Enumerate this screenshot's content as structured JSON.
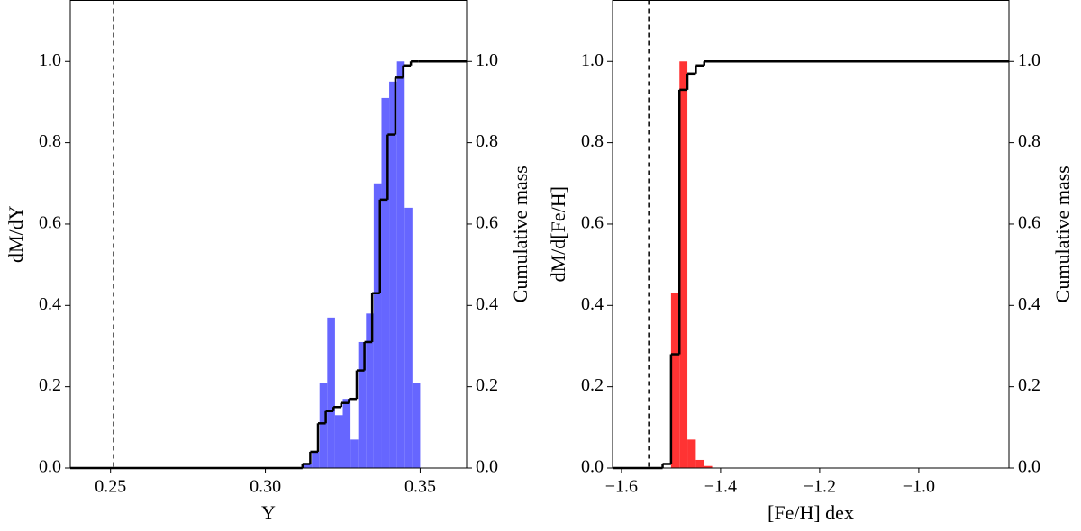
{
  "chart_data": [
    {
      "type": "histogram",
      "xlabel": "Y",
      "ylabel": "dM/dY",
      "y2label": "Cumulative mass",
      "bins": [
        0.3125,
        0.315,
        0.3175,
        0.32,
        0.3225,
        0.325,
        0.3275,
        0.33,
        0.3325,
        0.335,
        0.3375,
        0.34,
        0.3425,
        0.345,
        0.3475,
        0.35
      ],
      "values": [
        0.01,
        0.04,
        0.21,
        0.37,
        0.13,
        0.17,
        0.07,
        0.31,
        0.38,
        0.7,
        0.91,
        0.95,
        1.0,
        0.64,
        0.21
      ],
      "color": "#6666ff",
      "vline": 0.251,
      "cumulative": {
        "axis": "y2",
        "color": "#000000",
        "x": [
          0.237,
          0.312,
          0.3145,
          0.317,
          0.3195,
          0.322,
          0.3245,
          0.327,
          0.3295,
          0.332,
          0.3345,
          0.337,
          0.3395,
          0.342,
          0.3445,
          0.347,
          0.3495
        ],
        "values": [
          0,
          0.01,
          0.04,
          0.11,
          0.14,
          0.15,
          0.16,
          0.17,
          0.24,
          0.31,
          0.43,
          0.66,
          0.82,
          0.96,
          0.99,
          1.0,
          1.0
        ]
      },
      "xlim": [
        0.237,
        0.365
      ],
      "ylim": [
        0,
        1.15
      ],
      "y2lim": [
        0,
        1.15
      ],
      "xticks": [
        0.25,
        {
          "value": 0.3,
          "label": "0.30"
        },
        0.35
      ],
      "yticks": [
        {
          "value": 0,
          "label": "0.0"
        },
        0.2,
        0.4,
        0.6,
        0.8,
        {
          "value": 1,
          "label": "1.0"
        }
      ],
      "y2ticks": [
        {
          "value": 0,
          "label": "0.0"
        },
        0.2,
        0.4,
        0.6,
        0.8,
        {
          "value": 1,
          "label": "1.0"
        }
      ]
    },
    {
      "type": "histogram",
      "xlabel": "[Fe/H] dex",
      "ylabel": "dM/d[Fe/H]",
      "y2label": "Cumulative mass",
      "bins": [
        -1.5,
        -1.483,
        -1.467,
        -1.45,
        -1.433,
        -1.417
      ],
      "values": [
        0.43,
        1.0,
        0.07,
        0.02,
        0.005
      ],
      "color": "#ff3333",
      "vline": -1.545,
      "cumulative": {
        "axis": "y2",
        "color": "#000000",
        "x": [
          -1.618,
          -1.517,
          -1.5,
          -1.483,
          -1.467,
          -1.45,
          -1.433
        ],
        "values": [
          0,
          0.01,
          0.28,
          0.93,
          0.97,
          0.99,
          1.0
        ]
      },
      "xlim": [
        -1.618,
        -0.818
      ],
      "ylim": [
        0,
        1.15
      ],
      "y2lim": [
        0,
        1.15
      ],
      "xticks": [
        {
          "value": -1.6,
          "label": "−1.6"
        },
        {
          "value": -1.4,
          "label": "−1.4"
        },
        {
          "value": -1.2,
          "label": "−1.2"
        },
        {
          "value": -1.0,
          "label": "−1.0"
        }
      ],
      "yticks": [
        {
          "value": 0,
          "label": "0.0"
        },
        0.2,
        0.4,
        0.6,
        0.8,
        {
          "value": 1,
          "label": "1.0"
        }
      ],
      "y2ticks": [
        {
          "value": 0,
          "label": "0.0"
        },
        0.2,
        0.4,
        0.6,
        0.8,
        {
          "value": 1,
          "label": "1.0"
        }
      ]
    }
  ]
}
